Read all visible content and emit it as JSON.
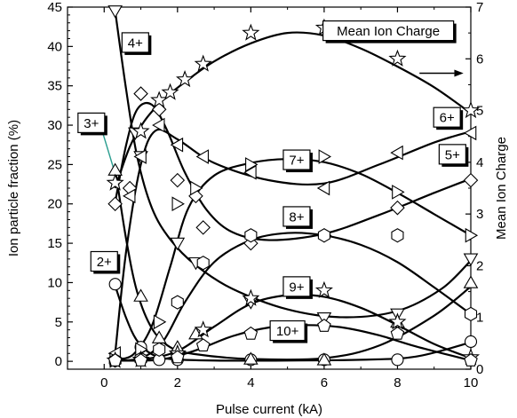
{
  "chart_data": {
    "type": "scatter",
    "xlabel": "Pulse current (kA)",
    "ylabel_left": "Ion particle fraction (%)",
    "ylabel_right": "Mean Ion Charge",
    "xlim": [
      -1,
      10
    ],
    "ylim_left": [
      -1,
      45
    ],
    "ylim_right": [
      0,
      7
    ],
    "x_ticks": [
      0,
      2,
      4,
      6,
      8,
      10
    ],
    "y_ticks_left": [
      0,
      5,
      10,
      15,
      20,
      25,
      30,
      35,
      40,
      45
    ],
    "y_ticks_right": [
      0,
      1,
      2,
      3,
      4,
      5,
      6,
      7
    ],
    "grid": false,
    "series": [
      {
        "name": "2+",
        "axis": "left",
        "marker": "circle",
        "color": "#000000",
        "points": [
          [
            0.3,
            9.8
          ],
          [
            1.0,
            1.8
          ],
          [
            1.5,
            0.2
          ],
          [
            2.0,
            0.2
          ],
          [
            4.0,
            0.2
          ],
          [
            6.0,
            0.2
          ],
          [
            8.0,
            0.2
          ],
          [
            10.0,
            2.5
          ]
        ],
        "curve": [
          [
            0.3,
            9.6
          ],
          [
            0.6,
            5.5
          ],
          [
            0.9,
            2.6
          ],
          [
            1.3,
            0.9
          ],
          [
            1.8,
            0.3
          ],
          [
            3.0,
            0.1
          ],
          [
            5.0,
            0.1
          ],
          [
            7.0,
            0.2
          ],
          [
            8.5,
            0.6
          ],
          [
            10.0,
            2.4
          ]
        ]
      },
      {
        "name": "3+",
        "axis": "left",
        "marker": "triangle-up",
        "color": "#000000",
        "points": [
          [
            0.3,
            24.3
          ],
          [
            1.0,
            8.3
          ],
          [
            1.5,
            3.0
          ],
          [
            2.0,
            1.8
          ],
          [
            2.5,
            3.5
          ],
          [
            4.0,
            0.3
          ],
          [
            6.0,
            0.2
          ],
          [
            8.0,
            5.0
          ],
          [
            10.0,
            10.0
          ]
        ],
        "curve": [
          [
            0.3,
            24.5
          ],
          [
            0.6,
            15.5
          ],
          [
            0.9,
            8.8
          ],
          [
            1.3,
            4.2
          ],
          [
            1.8,
            1.8
          ],
          [
            2.5,
            0.9
          ],
          [
            4.0,
            0.3
          ],
          [
            6.0,
            0.4
          ],
          [
            7.5,
            2.0
          ],
          [
            9.0,
            5.8
          ],
          [
            10.0,
            9.5
          ]
        ]
      },
      {
        "name": "4+",
        "axis": "left",
        "marker": "triangle-down",
        "color": "#000000",
        "points": [
          [
            0.3,
            44.5
          ],
          [
            0.85,
            29.0
          ],
          [
            1.0,
            26.0
          ],
          [
            2.0,
            15.0
          ],
          [
            2.5,
            12.5
          ],
          [
            4.0,
            7.5
          ],
          [
            6.0,
            5.5
          ],
          [
            8.0,
            6.0
          ],
          [
            10.0,
            13.0
          ]
        ],
        "curve": [
          [
            0.3,
            44.5
          ],
          [
            0.6,
            34.5
          ],
          [
            0.9,
            26.0
          ],
          [
            1.3,
            19.5
          ],
          [
            1.8,
            15.5
          ],
          [
            2.5,
            12.2
          ],
          [
            3.5,
            9.2
          ],
          [
            5.0,
            6.6
          ],
          [
            6.5,
            5.6
          ],
          [
            8.0,
            6.4
          ],
          [
            9.2,
            9.2
          ],
          [
            10.0,
            12.8
          ]
        ]
      },
      {
        "name": "5+",
        "axis": "left",
        "marker": "diamond",
        "color": "#000000",
        "points": [
          [
            0.3,
            20.0
          ],
          [
            0.7,
            22.0
          ],
          [
            1.0,
            34.0
          ],
          [
            1.5,
            32.0
          ],
          [
            2.0,
            23.0
          ],
          [
            2.5,
            21.0
          ],
          [
            2.7,
            17.0
          ],
          [
            4.0,
            15.0
          ],
          [
            6.0,
            16.0
          ],
          [
            8.0,
            19.5
          ],
          [
            10.0,
            23.0
          ]
        ],
        "curve": [
          [
            0.3,
            20.2
          ],
          [
            0.6,
            27.5
          ],
          [
            0.9,
            32.0
          ],
          [
            1.3,
            32.6
          ],
          [
            1.7,
            29.5
          ],
          [
            2.2,
            24.0
          ],
          [
            2.8,
            19.2
          ],
          [
            3.5,
            16.4
          ],
          [
            4.5,
            15.4
          ],
          [
            6.0,
            16.2
          ],
          [
            7.5,
            18.6
          ],
          [
            9.0,
            21.4
          ],
          [
            10.0,
            23.2
          ]
        ]
      },
      {
        "name": "6+",
        "axis": "left",
        "marker": "triangle-left",
        "color": "#000000",
        "points": [
          [
            0.3,
            1.0
          ],
          [
            0.7,
            21.0
          ],
          [
            1.0,
            26.0
          ],
          [
            1.5,
            30.0
          ],
          [
            2.0,
            27.5
          ],
          [
            2.7,
            26.0
          ],
          [
            4.0,
            24.0
          ],
          [
            6.0,
            22.0
          ],
          [
            8.0,
            26.5
          ],
          [
            10.0,
            29.0
          ]
        ],
        "curve": [
          [
            0.3,
            1.0
          ],
          [
            0.6,
            14.0
          ],
          [
            1.0,
            25.0
          ],
          [
            1.4,
            29.3
          ],
          [
            2.0,
            28.2
          ],
          [
            3.0,
            25.2
          ],
          [
            4.5,
            23.0
          ],
          [
            6.0,
            22.6
          ],
          [
            7.5,
            25.0
          ],
          [
            9.0,
            27.8
          ],
          [
            10.0,
            29.2
          ]
        ]
      },
      {
        "name": "7+",
        "axis": "left",
        "marker": "triangle-right",
        "color": "#000000",
        "points": [
          [
            0.3,
            0.2
          ],
          [
            1.0,
            1.5
          ],
          [
            1.5,
            5.0
          ],
          [
            2.0,
            20.0
          ],
          [
            2.5,
            22.0
          ],
          [
            4.0,
            25.0
          ],
          [
            6.0,
            26.0
          ],
          [
            8.0,
            21.5
          ],
          [
            10.0,
            16.0
          ]
        ],
        "curve": [
          [
            0.3,
            0.2
          ],
          [
            0.8,
            0.9
          ],
          [
            1.3,
            4.5
          ],
          [
            1.8,
            12.0
          ],
          [
            2.3,
            19.5
          ],
          [
            3.0,
            23.6
          ],
          [
            4.0,
            25.2
          ],
          [
            5.0,
            25.7
          ],
          [
            6.0,
            25.3
          ],
          [
            7.0,
            23.8
          ],
          [
            8.0,
            21.4
          ],
          [
            9.0,
            18.7
          ],
          [
            10.0,
            16.0
          ]
        ]
      },
      {
        "name": "8+",
        "axis": "left",
        "marker": "hexagon",
        "color": "#000000",
        "points": [
          [
            0.3,
            0.1
          ],
          [
            1.0,
            0.3
          ],
          [
            1.5,
            1.5
          ],
          [
            2.0,
            7.5
          ],
          [
            2.7,
            12.5
          ],
          [
            4.0,
            16.0
          ],
          [
            6.0,
            16.0
          ],
          [
            8.0,
            16.0
          ],
          [
            10.0,
            6.0
          ]
        ],
        "curve": [
          [
            0.3,
            0.1
          ],
          [
            1.0,
            0.4
          ],
          [
            1.6,
            2.5
          ],
          [
            2.2,
            7.5
          ],
          [
            3.0,
            12.6
          ],
          [
            4.0,
            15.4
          ],
          [
            5.0,
            16.3
          ],
          [
            6.0,
            16.0
          ],
          [
            7.0,
            14.8
          ],
          [
            8.0,
            12.6
          ],
          [
            9.0,
            9.4
          ],
          [
            10.0,
            6.0
          ]
        ]
      },
      {
        "name": "9+",
        "axis": "left",
        "marker": "star",
        "color": "#000000",
        "points": [
          [
            0.3,
            0.1
          ],
          [
            1.0,
            0.2
          ],
          [
            2.0,
            1.0
          ],
          [
            2.7,
            4.0
          ],
          [
            4.0,
            8.0
          ],
          [
            6.0,
            9.0
          ],
          [
            8.0,
            5.0
          ],
          [
            10.0,
            0.5
          ]
        ],
        "curve": [
          [
            0.3,
            0.1
          ],
          [
            1.0,
            0.2
          ],
          [
            2.0,
            1.3
          ],
          [
            3.0,
            4.4
          ],
          [
            4.0,
            7.3
          ],
          [
            5.0,
            8.4
          ],
          [
            6.0,
            8.2
          ],
          [
            7.0,
            6.8
          ],
          [
            8.0,
            4.6
          ],
          [
            9.0,
            2.2
          ],
          [
            10.0,
            0.4
          ]
        ]
      },
      {
        "name": "10+",
        "axis": "left",
        "marker": "pentagon",
        "color": "#000000",
        "points": [
          [
            0.3,
            0.1
          ],
          [
            1.0,
            0.1
          ],
          [
            2.0,
            0.5
          ],
          [
            2.7,
            2.0
          ],
          [
            4.0,
            3.5
          ],
          [
            6.0,
            4.5
          ],
          [
            8.0,
            3.5
          ],
          [
            10.0,
            0.1
          ]
        ],
        "curve": [
          [
            0.3,
            0.1
          ],
          [
            1.5,
            0.2
          ],
          [
            2.5,
            1.4
          ],
          [
            3.5,
            3.2
          ],
          [
            4.5,
            4.3
          ],
          [
            5.5,
            4.6
          ],
          [
            6.5,
            4.3
          ],
          [
            7.5,
            3.3
          ],
          [
            8.5,
            1.9
          ],
          [
            10.0,
            0.1
          ]
        ]
      },
      {
        "name": "Mean Ion Charge",
        "axis": "right",
        "marker": "star",
        "color": "#000000",
        "points": [
          [
            0.3,
            3.6
          ],
          [
            1.0,
            4.6
          ],
          [
            1.5,
            5.2
          ],
          [
            1.8,
            5.35
          ],
          [
            2.2,
            5.6
          ],
          [
            2.7,
            5.9
          ],
          [
            4.0,
            6.5
          ],
          [
            6.0,
            6.6
          ],
          [
            8.0,
            6.0
          ],
          [
            10.0,
            5.0
          ]
        ],
        "curve": [
          [
            0.3,
            3.5
          ],
          [
            0.7,
            4.3
          ],
          [
            1.1,
            4.8
          ],
          [
            1.6,
            5.2
          ],
          [
            2.2,
            5.55
          ],
          [
            3.0,
            5.95
          ],
          [
            4.0,
            6.3
          ],
          [
            5.0,
            6.5
          ],
          [
            6.0,
            6.45
          ],
          [
            7.0,
            6.2
          ],
          [
            8.0,
            5.85
          ],
          [
            9.0,
            5.45
          ],
          [
            10.0,
            4.95
          ]
        ]
      }
    ],
    "annotations": [
      {
        "text": "2+",
        "x": 0.0,
        "y": 12.7
      },
      {
        "text": "3+",
        "x": -0.35,
        "y": 30.3
      },
      {
        "text": "4+",
        "x": 0.85,
        "y": 40.5
      },
      {
        "text": "5+",
        "x": 9.5,
        "y": 26.3
      },
      {
        "text": "6+",
        "x": 9.35,
        "y": 31.0
      },
      {
        "text": "7+",
        "x": 5.25,
        "y": 25.6
      },
      {
        "text": "8+",
        "x": 5.25,
        "y": 18.4
      },
      {
        "text": "9+",
        "x": 5.25,
        "y": 9.5
      },
      {
        "text": "10+",
        "x": 5.0,
        "y": 3.9
      },
      {
        "text": "Mean Ion Charge",
        "x": 7.75,
        "y": 42.0
      }
    ]
  }
}
